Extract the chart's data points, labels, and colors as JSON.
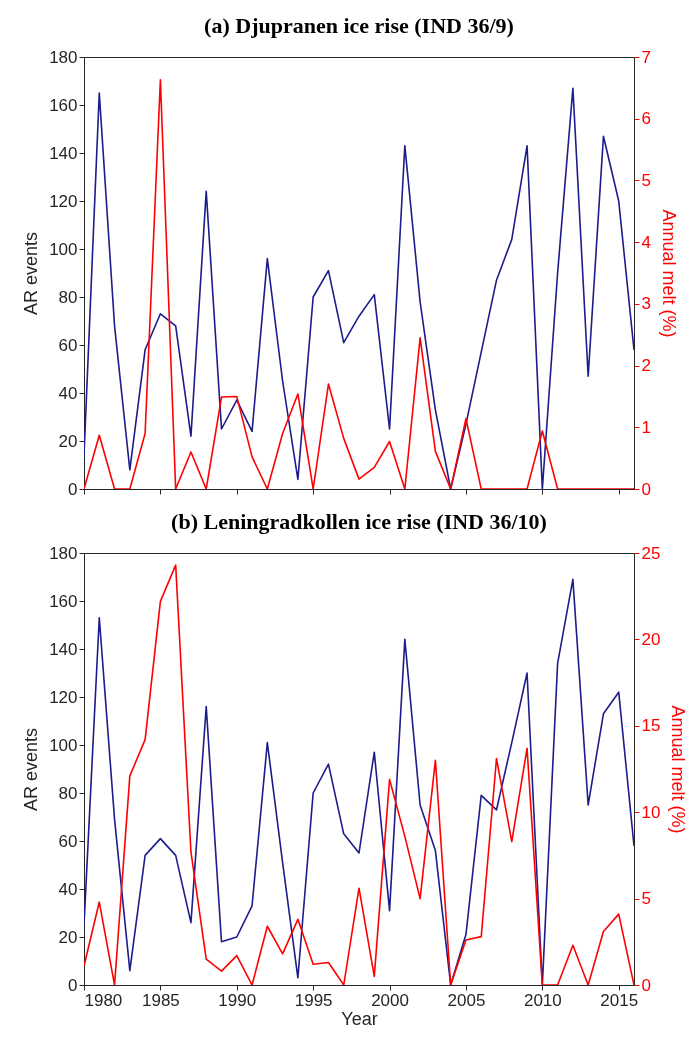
{
  "chart_data": [
    {
      "type": "line",
      "title": "(a) Djupranen ice rise (IND 36/9)",
      "ylabel": "AR events",
      "y2label": "Annual melt (%)",
      "x": [
        1980,
        1981,
        1982,
        1983,
        1984,
        1985,
        1986,
        1987,
        1988,
        1989,
        1990,
        1991,
        1992,
        1993,
        1994,
        1995,
        1996,
        1997,
        1998,
        1999,
        2000,
        2001,
        2002,
        2003,
        2004,
        2005,
        2006,
        2007,
        2008,
        2009,
        2010,
        2011,
        2012,
        2013,
        2014,
        2015,
        2016
      ],
      "xlim": [
        1980,
        2016
      ],
      "xticks": [
        1980,
        1985,
        1990,
        1995,
        2000,
        2005,
        2010,
        2015
      ],
      "ylim": [
        0,
        180
      ],
      "yticks": [
        0,
        20,
        40,
        60,
        80,
        100,
        120,
        140,
        160,
        180
      ],
      "y2lim": [
        0,
        7
      ],
      "y2ticks": [
        0,
        1,
        2,
        3,
        4,
        5,
        6,
        7
      ],
      "tick_labels": "y",
      "grid": false,
      "series": [
        {
          "color": "#1c1c8c",
          "values": [
            14,
            165,
            68,
            8,
            58,
            73,
            68,
            22,
            124,
            25,
            37,
            24,
            96,
            45,
            4,
            80,
            91,
            61,
            72,
            81,
            25,
            143,
            78,
            33,
            0,
            27,
            57,
            87,
            104,
            143,
            0,
            90,
            167,
            47,
            147,
            120,
            58
          ]
        },
        {
          "color": "#ff0000",
          "axis": "y2",
          "values": [
            0,
            0.87,
            0,
            0,
            0.9,
            6.63,
            0,
            0.6,
            0,
            1.49,
            1.5,
            0.52,
            0,
            0.9,
            1.54,
            0,
            1.7,
            0.82,
            0.16,
            0.35,
            0.77,
            0,
            2.45,
            0.61,
            0,
            1.14,
            0,
            0,
            0,
            0,
            0.94,
            0,
            0,
            0,
            0,
            0,
            0
          ]
        }
      ]
    },
    {
      "type": "line",
      "title": "(b) Leningradkollen ice rise (IND 36/10)",
      "xlabel": "Year",
      "ylabel": "AR events",
      "y2label": "Annual melt (%)",
      "x": [
        1980,
        1981,
        1982,
        1983,
        1984,
        1985,
        1986,
        1987,
        1988,
        1989,
        1990,
        1991,
        1992,
        1993,
        1994,
        1995,
        1996,
        1997,
        1998,
        1999,
        2000,
        2001,
        2002,
        2003,
        2004,
        2005,
        2006,
        2007,
        2008,
        2009,
        2010,
        2011,
        2012,
        2013,
        2014,
        2015,
        2016
      ],
      "xlim": [
        1980,
        2016
      ],
      "xticks": [
        1980,
        1985,
        1990,
        1995,
        2000,
        2005,
        2010,
        2015
      ],
      "ylim": [
        0,
        180
      ],
      "yticks": [
        0,
        20,
        40,
        60,
        80,
        100,
        120,
        140,
        160,
        180
      ],
      "y2lim": [
        0,
        25
      ],
      "y2ticks": [
        0,
        5,
        10,
        15,
        20,
        25
      ],
      "grid": false,
      "series": [
        {
          "color": "#1c1c8c",
          "values": [
            25,
            153,
            69,
            6,
            54,
            61,
            54,
            26,
            116,
            18,
            20,
            33,
            101,
            51,
            3,
            80,
            92,
            63,
            55,
            97,
            31,
            144,
            75,
            56,
            0,
            21,
            79,
            73,
            101,
            130,
            0,
            134,
            169,
            75,
            113,
            122,
            58
          ]
        },
        {
          "color": "#ff0000",
          "axis": "y2",
          "values": [
            1.1,
            4.8,
            0,
            12.1,
            14.2,
            22.2,
            24.3,
            7.7,
            1.5,
            0.8,
            1.7,
            0,
            3.4,
            1.8,
            3.8,
            1.2,
            1.3,
            0,
            5.6,
            0.5,
            11.9,
            8.6,
            5.0,
            13.0,
            0,
            2.6,
            2.8,
            13.1,
            8.3,
            13.7,
            0,
            0,
            2.3,
            0,
            3.1,
            4.1,
            0
          ]
        }
      ]
    }
  ]
}
